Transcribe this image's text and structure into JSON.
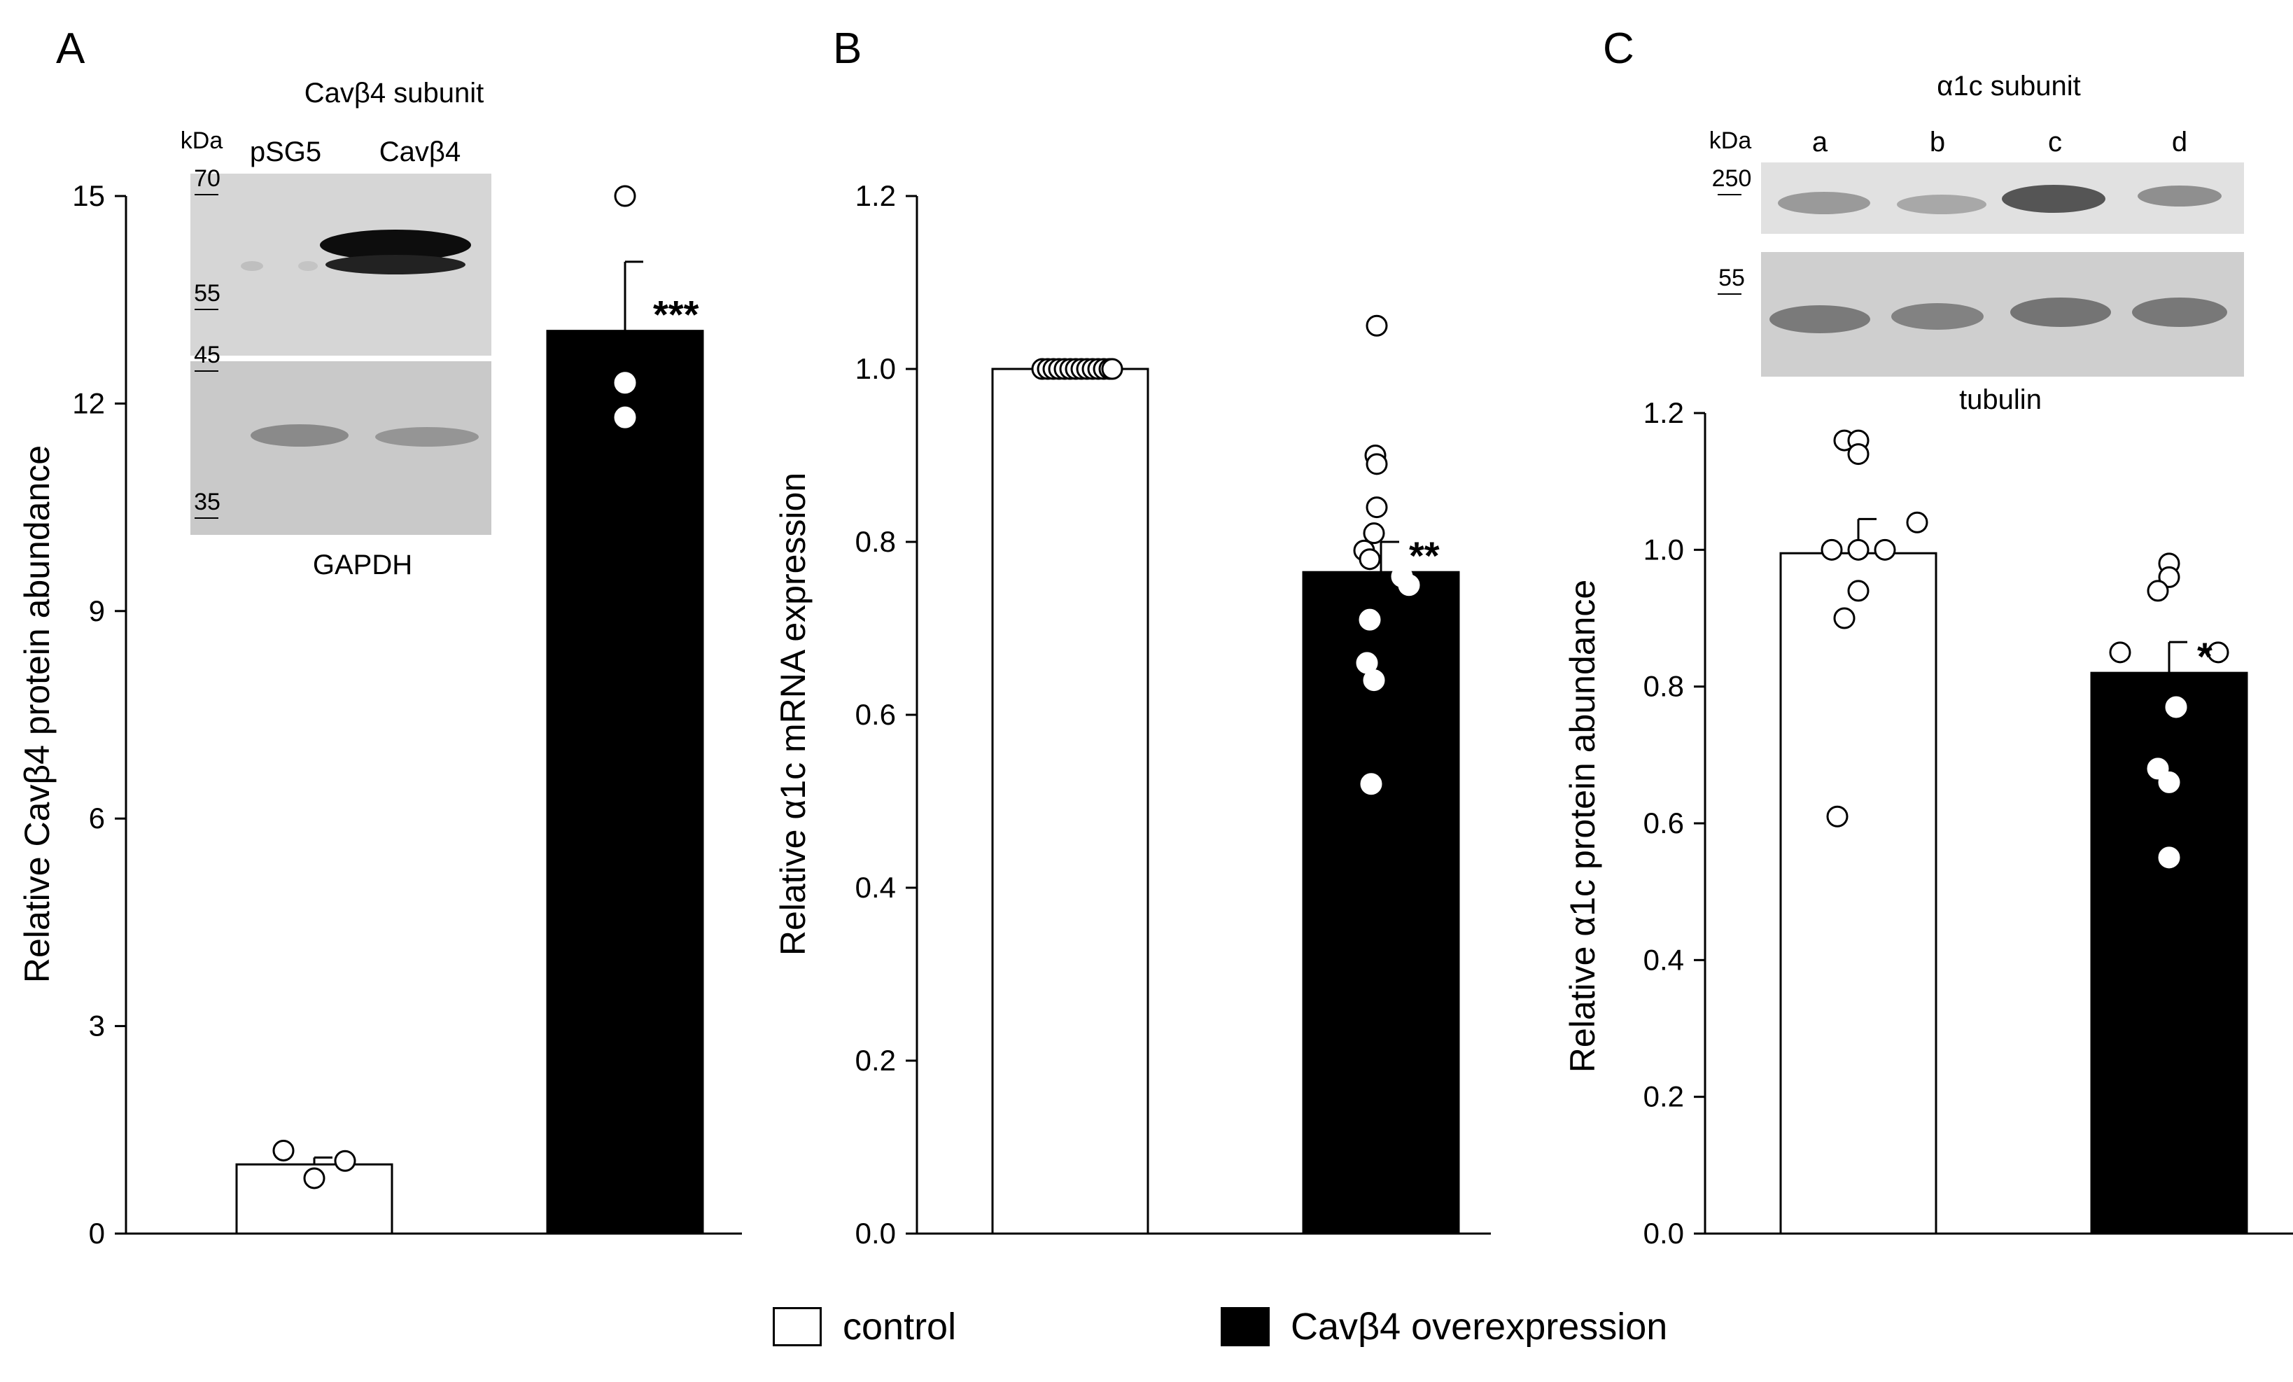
{
  "chart_data": [
    {
      "panel": "A",
      "type": "bar",
      "ylabel": "Relative Cavβ4 protein abundance",
      "ylim": [
        0,
        15
      ],
      "yticks": [
        "0",
        "3",
        "6",
        "9",
        "12",
        "15"
      ],
      "ytick_values": [
        0,
        3,
        6,
        9,
        12,
        15
      ],
      "categories": [
        "control",
        "Cavβ4 overexpression"
      ],
      "values": [
        1.0,
        13.05
      ],
      "errors": [
        0.1,
        1.0
      ],
      "points": [
        [
          1.2,
          0.8,
          1.05
        ],
        [
          15.0,
          11.8,
          12.3
        ]
      ],
      "significance": [
        "",
        "***"
      ],
      "inset": {
        "title": "Cavβ4 subunit",
        "kda_label": "kDa",
        "lanes": [
          "pSG5",
          "Cavβ4"
        ],
        "markers": [
          "70",
          "55",
          "45",
          "35"
        ],
        "loading_label": "GAPDH"
      }
    },
    {
      "panel": "B",
      "type": "bar",
      "ylabel": "Relative α1c mRNA expression",
      "ylim": [
        0,
        1.2
      ],
      "yticks": [
        "0.0",
        "0.2",
        "0.4",
        "0.6",
        "0.8",
        "1.0",
        "1.2"
      ],
      "ytick_values": [
        0,
        0.2,
        0.4,
        0.6,
        0.8,
        1.0,
        1.2
      ],
      "categories": [
        "control",
        "Cavβ4 overexpression"
      ],
      "values": [
        1.0,
        0.765
      ],
      "errors": [
        0.0,
        0.035
      ],
      "points": [
        [
          1.0,
          1.0,
          1.0,
          1.0,
          1.0,
          1.0,
          1.0,
          1.0,
          1.0,
          1.0,
          1.0,
          1.0,
          1.0,
          1.0
        ],
        [
          1.05,
          0.9,
          0.89,
          0.84,
          0.81,
          0.79,
          0.78,
          0.76,
          0.75,
          0.71,
          0.66,
          0.64,
          0.52
        ]
      ],
      "significance": [
        "",
        "**"
      ]
    },
    {
      "panel": "C",
      "type": "bar",
      "ylabel": "Relative α1c protein abundance",
      "ylim": [
        0,
        1.2
      ],
      "yticks": [
        "0.0",
        "0.2",
        "0.4",
        "0.6",
        "0.8",
        "1.0",
        "1.2"
      ],
      "ytick_values": [
        0,
        0.2,
        0.4,
        0.6,
        0.8,
        1.0,
        1.2
      ],
      "categories": [
        "control",
        "Cavβ4 overexpression"
      ],
      "values": [
        0.995,
        0.82
      ],
      "errors": [
        0.05,
        0.045
      ],
      "points": [
        [
          1.16,
          1.16,
          1.14,
          1.04,
          1.0,
          1.0,
          1.0,
          0.94,
          0.9,
          0.61
        ],
        [
          0.98,
          0.96,
          0.94,
          0.85,
          0.85,
          0.77,
          0.68,
          0.66,
          0.55
        ]
      ],
      "significance": [
        "",
        "*"
      ],
      "inset": {
        "title": "α1c subunit",
        "kda_label": "kDa",
        "lanes": [
          "a",
          "b",
          "c",
          "d"
        ],
        "markers": [
          "250",
          "55"
        ],
        "loading_label": "tubulin"
      }
    }
  ],
  "legend": {
    "items": [
      {
        "label": "control",
        "color": "#ffffff"
      },
      {
        "label": "Cavβ4 overexpression",
        "color": "#000000"
      }
    ]
  }
}
